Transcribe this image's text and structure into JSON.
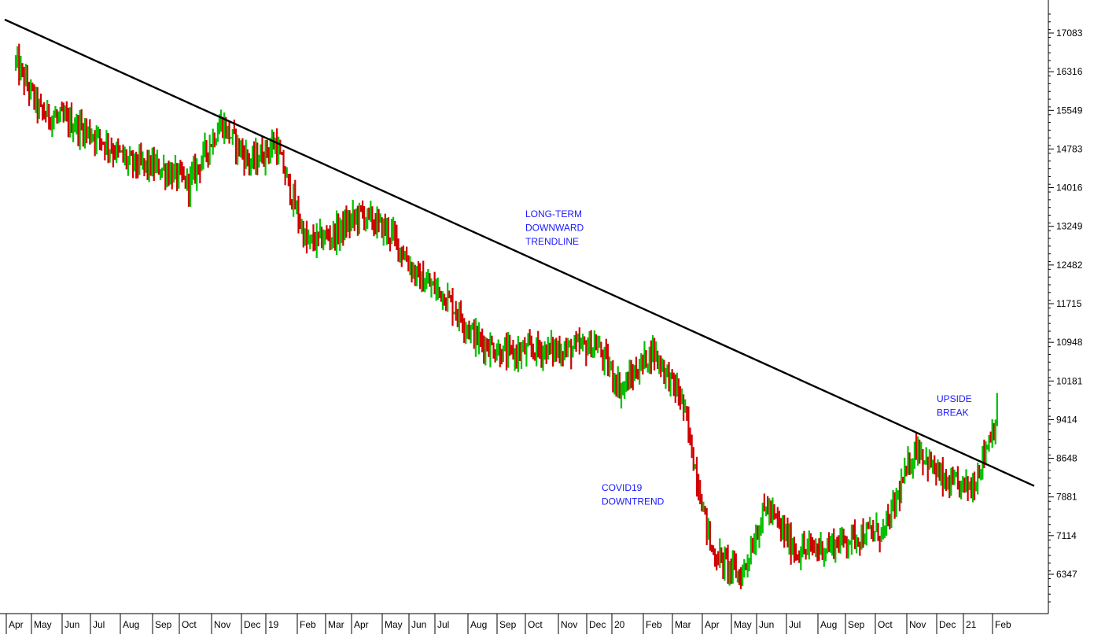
{
  "chart_data": {
    "type": "ohlc",
    "title": "",
    "xlabel": "",
    "ylabel": "",
    "ylim": [
      5700,
      17700
    ],
    "y_ticks": [
      17083,
      16316,
      15549,
      14783,
      14016,
      13249,
      12482,
      11715,
      10948,
      10181,
      9414,
      8648,
      7881,
      7114,
      6347
    ],
    "x_ticks": [
      "Apr",
      "May",
      "Jun",
      "Jul",
      "Aug",
      "Sep",
      "Oct",
      "Nov",
      "Dec",
      "19",
      "Feb",
      "Mar",
      "Apr",
      "May",
      "Jun",
      "Jul",
      "Aug",
      "Sep",
      "Oct",
      "Nov",
      "Dec",
      "20",
      "Feb",
      "Mar",
      "Apr",
      "May",
      "Jun",
      "Jul",
      "Aug",
      "Sep",
      "Oct",
      "Nov",
      "Dec",
      "21",
      "Feb"
    ],
    "grid": false,
    "colors": {
      "up": "#00c000",
      "down": "#d00000",
      "trendline": "#000000",
      "annotation": "#1a1aff",
      "axis": "#000000"
    },
    "price_path": [
      [
        "Apr",
        16500
      ],
      [
        "May",
        15500
      ],
      [
        "Jun",
        15300
      ],
      [
        "Jul",
        15000
      ],
      [
        "Aug",
        14500
      ],
      [
        "Sep",
        14400
      ],
      [
        "Oct",
        14100
      ],
      [
        "Nov",
        15300
      ],
      [
        "Dec",
        14500
      ],
      [
        "19",
        14900
      ],
      [
        "Feb",
        12900
      ],
      [
        "Mar",
        13100
      ],
      [
        "Apr",
        13500
      ],
      [
        "May",
        13100
      ],
      [
        "Jun",
        12200
      ],
      [
        "Jul",
        11900
      ],
      [
        "Aug",
        11000
      ],
      [
        "Sep",
        10700
      ],
      [
        "Oct",
        10800
      ],
      [
        "Nov",
        10800
      ],
      [
        "Dec",
        10900
      ],
      [
        "20",
        10000
      ],
      [
        "Feb",
        10800
      ],
      [
        "Mar",
        9800
      ],
      [
        "Apr",
        6800
      ],
      [
        "May",
        6300
      ],
      [
        "Jun",
        7700
      ],
      [
        "Jul",
        6800
      ],
      [
        "Aug",
        6900
      ],
      [
        "Sep",
        7100
      ],
      [
        "Oct",
        7200
      ],
      [
        "Nov",
        8900
      ],
      [
        "Dec",
        8100
      ],
      [
        "21",
        8100
      ],
      [
        "Feb",
        9800
      ]
    ],
    "trendline": {
      "start": [
        "Apr",
        17350
      ],
      "end": [
        "Feb",
        8100
      ]
    },
    "annotations": [
      {
        "text": [
          "LONG-TERM",
          "DOWNWARD",
          "TRENDLINE"
        ],
        "at": [
          "Nov",
          13500
        ]
      },
      {
        "text": [
          "COVID19",
          "DOWNTREND"
        ],
        "at": [
          "Dec",
          7950
        ]
      },
      {
        "text": [
          "UPSIDE",
          "BREAK"
        ],
        "at": [
          "Dec",
          9700
        ]
      }
    ]
  }
}
